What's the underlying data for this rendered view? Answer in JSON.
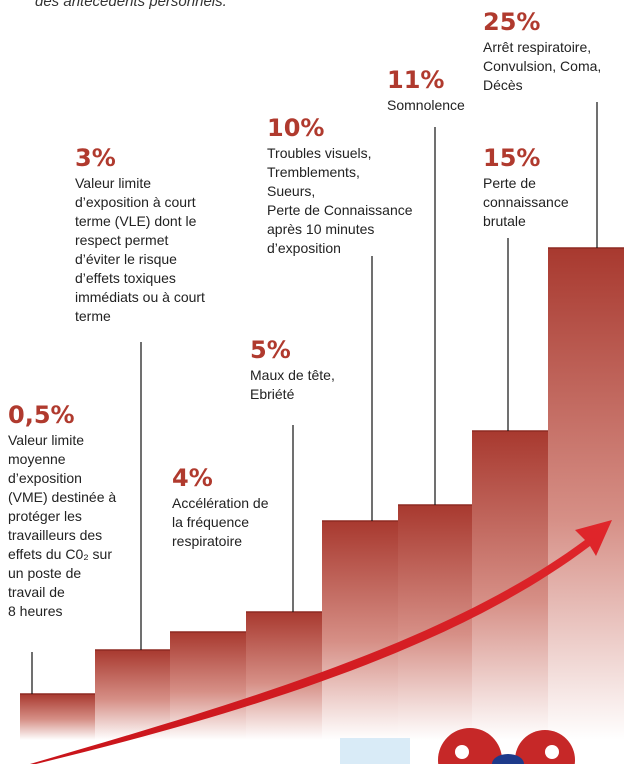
{
  "caption": "des antécédents personnels.",
  "steps": [
    {
      "level": "0,5%",
      "description": [
        "Valeur limite",
        "moyenne",
        "d’exposition",
        "(VME) destinée à",
        "protéger les",
        "travailleurs des",
        "effets du C0₂ sur",
        "un poste de",
        "travail de",
        "8 heures"
      ]
    },
    {
      "level": "3%",
      "description": [
        "Valeur limite",
        "d’exposition à court",
        "terme (VLE) dont le",
        "respect  permet",
        "d’éviter le risque",
        "d’effets toxiques",
        "immédiats ou à court",
        "terme"
      ]
    },
    {
      "level": "4%",
      "description": [
        "Accélération de",
        "la fréquence",
        "respiratoire"
      ]
    },
    {
      "level": "5%",
      "description": [
        "Maux de tête,",
        "Ebriété"
      ]
    },
    {
      "level": "10%",
      "description": [
        "Troubles visuels,",
        "Tremblements,",
        "Sueurs,",
        "Perte de Connaissance",
        "après 10 minutes",
        "d’exposition"
      ]
    },
    {
      "level": "11%",
      "description": [
        "Somnolence"
      ]
    },
    {
      "level": "15%",
      "description": [
        "Perte de",
        "connaissance",
        "brutale"
      ]
    },
    {
      "level": "25%",
      "description": [
        "Arrêt respiratoire,",
        "Convulsion, Coma,",
        "Décès"
      ]
    }
  ]
}
